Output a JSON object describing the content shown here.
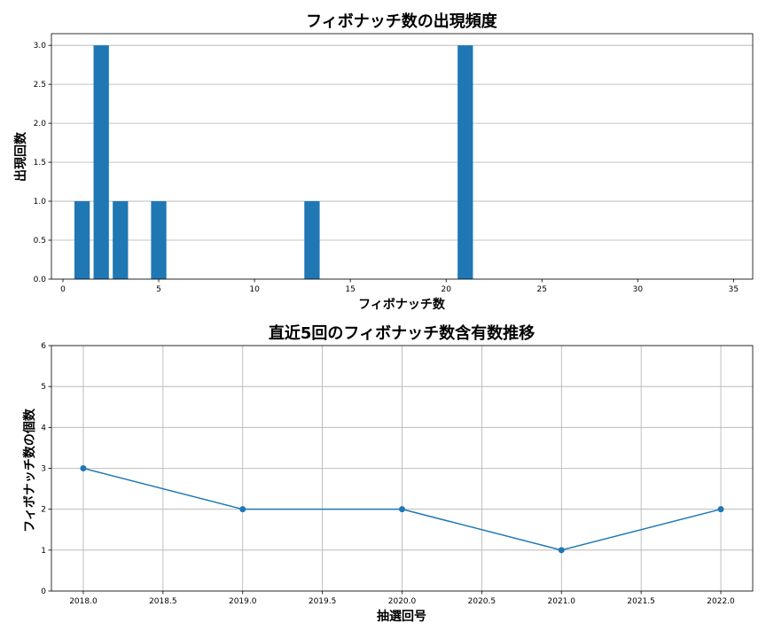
{
  "chart_data": [
    {
      "type": "bar",
      "title": "フィボナッチ数の出現頻度",
      "xlabel": "フィボナッチ数",
      "ylabel": "出現回数",
      "x": [
        1,
        2,
        3,
        5,
        13,
        21
      ],
      "values": [
        1,
        3,
        1,
        1,
        1,
        3
      ],
      "xlim": [
        -0.6,
        36.0
      ],
      "ylim": [
        0,
        3.15
      ],
      "xticks": [
        0,
        5,
        10,
        15,
        20,
        25,
        30,
        35
      ],
      "yticks": [
        0.0,
        0.5,
        1.0,
        1.5,
        2.0,
        2.5,
        3.0
      ],
      "ytick_labels": [
        "0.0",
        "0.5",
        "1.0",
        "1.5",
        "2.0",
        "2.5",
        "3.0"
      ],
      "grid": "y",
      "color": "#1f77b4"
    },
    {
      "type": "line",
      "title": "直近5回のフィボナッチ数含有数推移",
      "xlabel": "抽選回号",
      "ylabel": "フィボナッチ数の個数",
      "x": [
        2018,
        2019,
        2020,
        2021,
        2022
      ],
      "values": [
        3,
        2,
        2,
        1,
        2
      ],
      "xlim": [
        2017.8,
        2022.2
      ],
      "ylim": [
        0,
        6
      ],
      "xticks": [
        2018.0,
        2018.5,
        2019.0,
        2019.5,
        2020.0,
        2020.5,
        2021.0,
        2021.5,
        2022.0
      ],
      "xtick_labels": [
        "2018.0",
        "2018.5",
        "2019.0",
        "2019.5",
        "2020.0",
        "2020.5",
        "2021.0",
        "2021.5",
        "2022.0"
      ],
      "yticks": [
        0,
        1,
        2,
        3,
        4,
        5,
        6
      ],
      "grid": "both",
      "marker": "circle",
      "color": "#1f77b4"
    }
  ]
}
